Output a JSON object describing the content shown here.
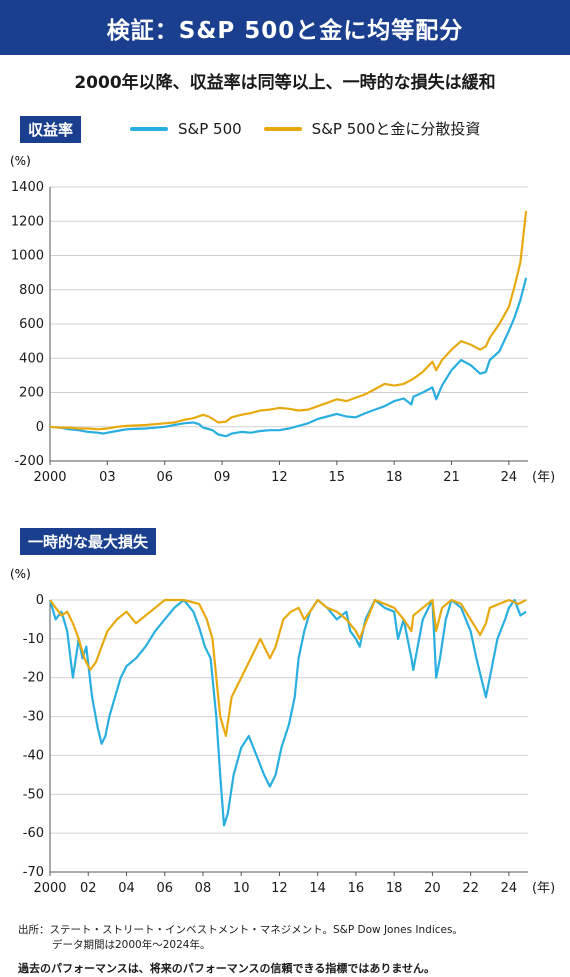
{
  "header": {
    "title": "検証：S&P 500と金に均等配分"
  },
  "subtitle": "2000年以降、収益率は同等以上、一時的な損失は緩和",
  "colors": {
    "sp500": "#29aee0",
    "blend": "#e8a90e",
    "brand": "#1b3f8f"
  },
  "chart_data": [
    {
      "type": "line",
      "section_label": "収益率",
      "unit_label": "(%)",
      "x_unit": "(年)",
      "x_ticks": [
        "2000",
        "03",
        "06",
        "09",
        "12",
        "15",
        "18",
        "21",
        "24"
      ],
      "ylim": [
        -200,
        1400
      ],
      "y_ticks": [
        "-200",
        "0",
        "200",
        "400",
        "600",
        "800",
        "1000",
        "1200",
        "1400"
      ],
      "grid": "horizontal",
      "legend_position": "top",
      "series": [
        {
          "name": "S&P 500",
          "x": [
            2000,
            2000.5,
            2001,
            2001.5,
            2002,
            2002.5,
            2002.8,
            2003,
            2003.5,
            2004,
            2005,
            2006,
            2006.5,
            2007,
            2007.5,
            2007.8,
            2008,
            2008.5,
            2008.8,
            2009.2,
            2009.5,
            2010,
            2010.5,
            2011,
            2011.5,
            2012,
            2012.5,
            2013,
            2013.5,
            2014,
            2014.5,
            2015,
            2015.5,
            2016,
            2016.5,
            2017,
            2017.5,
            2018,
            2018.5,
            2018.9,
            2019,
            2019.5,
            2020,
            2020.2,
            2020.5,
            2021,
            2021.5,
            2022,
            2022.5,
            2022.8,
            2023,
            2023.5,
            2024,
            2024.3,
            2024.6,
            2024.9
          ],
          "y": [
            0,
            -5,
            -15,
            -20,
            -30,
            -35,
            -40,
            -35,
            -25,
            -15,
            -10,
            0,
            10,
            20,
            25,
            15,
            -5,
            -20,
            -45,
            -55,
            -40,
            -30,
            -35,
            -25,
            -20,
            -20,
            -10,
            5,
            20,
            45,
            60,
            75,
            60,
            55,
            80,
            100,
            120,
            150,
            165,
            130,
            175,
            200,
            230,
            160,
            240,
            330,
            390,
            360,
            310,
            320,
            390,
            440,
            560,
            640,
            740,
            870
          ]
        },
        {
          "name": "S&P 500と金に分散投資",
          "x": [
            2000,
            2000.5,
            2001,
            2001.5,
            2002,
            2002.5,
            2003,
            2003.5,
            2004,
            2005,
            2006,
            2006.5,
            2007,
            2007.5,
            2008,
            2008.3,
            2008.8,
            2009.2,
            2009.5,
            2010,
            2010.5,
            2011,
            2011.5,
            2012,
            2012.5,
            2013,
            2013.5,
            2014,
            2014.5,
            2015,
            2015.5,
            2016,
            2016.5,
            2017,
            2017.5,
            2018,
            2018.5,
            2019,
            2019.5,
            2020,
            2020.2,
            2020.5,
            2021,
            2021.5,
            2022,
            2022.5,
            2022.8,
            2023,
            2023.5,
            2024,
            2024.3,
            2024.6,
            2024.9
          ],
          "y": [
            0,
            -5,
            -5,
            -10,
            -10,
            -15,
            -10,
            0,
            5,
            10,
            20,
            25,
            40,
            50,
            70,
            60,
            25,
            30,
            55,
            70,
            80,
            95,
            100,
            110,
            105,
            95,
            100,
            120,
            140,
            160,
            150,
            170,
            190,
            220,
            250,
            240,
            250,
            280,
            320,
            380,
            330,
            390,
            450,
            500,
            480,
            450,
            470,
            520,
            600,
            700,
            820,
            960,
            1260
          ]
        }
      ]
    },
    {
      "type": "line",
      "section_label": "一時的な最大損失",
      "unit_label": "(%)",
      "x_unit": "(年)",
      "x_ticks": [
        "2000",
        "02",
        "04",
        "06",
        "08",
        "10",
        "12",
        "14",
        "16",
        "18",
        "20",
        "22",
        "24"
      ],
      "ylim": [
        -70,
        0
      ],
      "y_ticks": [
        "0",
        "-10",
        "-20",
        "-30",
        "-40",
        "-50",
        "-60",
        "-70"
      ],
      "grid": "horizontal",
      "series": [
        {
          "name": "S&P 500",
          "x": [
            2000,
            2000.3,
            2000.6,
            2000.9,
            2001.2,
            2001.5,
            2001.7,
            2001.9,
            2002.2,
            2002.5,
            2002.7,
            2002.9,
            2003.1,
            2003.4,
            2003.7,
            2004,
            2004.5,
            2005,
            2005.5,
            2006,
            2006.5,
            2007,
            2007.5,
            2007.8,
            2008.1,
            2008.4,
            2008.7,
            2008.9,
            2009.1,
            2009.3,
            2009.6,
            2010,
            2010.4,
            2010.8,
            2011.2,
            2011.5,
            2011.8,
            2012.1,
            2012.5,
            2012.8,
            2013,
            2013.3,
            2013.6,
            2014,
            2014.5,
            2015,
            2015.5,
            2015.7,
            2016,
            2016.2,
            2016.5,
            2017,
            2017.5,
            2018,
            2018.2,
            2018.5,
            2018.9,
            2019,
            2019.5,
            2020,
            2020.2,
            2020.4,
            2020.7,
            2021,
            2021.5,
            2022,
            2022.3,
            2022.8,
            2023,
            2023.4,
            2023.8,
            2024,
            2024.3,
            2024.6,
            2024.9
          ],
          "y": [
            0,
            -5,
            -3,
            -8,
            -20,
            -10,
            -15,
            -12,
            -25,
            -33,
            -37,
            -35,
            -30,
            -25,
            -20,
            -17,
            -15,
            -12,
            -8,
            -5,
            -2,
            0,
            -3,
            -7,
            -12,
            -15,
            -30,
            -45,
            -58,
            -55,
            -45,
            -38,
            -35,
            -40,
            -45,
            -48,
            -45,
            -38,
            -32,
            -25,
            -15,
            -8,
            -3,
            0,
            -2,
            -5,
            -3,
            -8,
            -10,
            -12,
            -5,
            0,
            -2,
            -3,
            -10,
            -5,
            -15,
            -18,
            -5,
            0,
            -20,
            -15,
            -5,
            0,
            -2,
            -8,
            -15,
            -25,
            -20,
            -10,
            -5,
            -2,
            0,
            -4,
            -3
          ]
        },
        {
          "name": "S&P 500と金に分散投資",
          "x": [
            2000,
            2000.3,
            2000.6,
            2000.9,
            2001.2,
            2001.5,
            2001.8,
            2002.1,
            2002.4,
            2002.7,
            2003,
            2003.5,
            2004,
            2004.5,
            2005,
            2005.5,
            2006,
            2007,
            2007.8,
            2008.2,
            2008.5,
            2008.7,
            2008.9,
            2009.2,
            2009.5,
            2010,
            2010.5,
            2011,
            2011.5,
            2011.8,
            2012.2,
            2012.6,
            2013,
            2013.3,
            2013.6,
            2014,
            2014.5,
            2015,
            2015.5,
            2016,
            2016.2,
            2016.5,
            2017,
            2018,
            2018.5,
            2018.9,
            2019,
            2019.5,
            2020,
            2020.2,
            2020.5,
            2021,
            2021.5,
            2022,
            2022.5,
            2022.8,
            2023,
            2023.5,
            2024,
            2024.5,
            2024.9
          ],
          "y": [
            0,
            -2,
            -4,
            -3,
            -6,
            -10,
            -15,
            -18,
            -16,
            -12,
            -8,
            -5,
            -3,
            -6,
            -4,
            -2,
            0,
            0,
            -1,
            -5,
            -10,
            -20,
            -30,
            -35,
            -25,
            -20,
            -15,
            -10,
            -15,
            -12,
            -5,
            -3,
            -2,
            -5,
            -3,
            0,
            -2,
            -3,
            -5,
            -8,
            -10,
            -6,
            0,
            -2,
            -5,
            -8,
            -4,
            -2,
            0,
            -8,
            -2,
            0,
            -1,
            -5,
            -9,
            -6,
            -2,
            -1,
            0,
            -1,
            0
          ]
        }
      ]
    }
  ],
  "footer": {
    "source_line1": "出所：ステート・ストリート・インベストメント・マネジメント。S&P Dow Jones Indices。",
    "source_line2": "データ期間は2000年～2024年。",
    "disclaimer": "過去のパフォーマンスは、将来のパフォーマンスの信頼できる指標ではありません。"
  }
}
